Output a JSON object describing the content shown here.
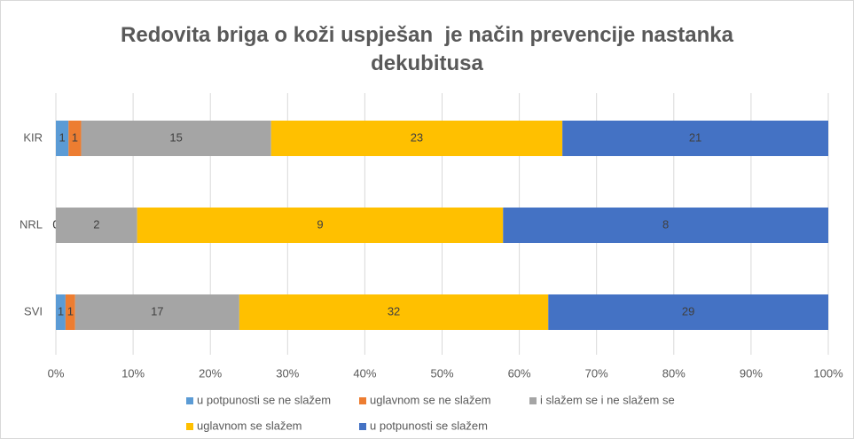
{
  "chart_data": {
    "type": "bar",
    "orientation": "horizontal",
    "stacking": "percent",
    "title": "Redovita briga o koži uspješan  je način prevencije nastanka dekubitusa",
    "categories": [
      "KIR",
      "NRL",
      "SVI"
    ],
    "series": [
      {
        "name": "u potpunosti se ne slažem",
        "color": "#5B9BD5",
        "values": [
          1,
          0,
          1
        ]
      },
      {
        "name": "uglavnom se ne slažem",
        "color": "#ED7D31",
        "values": [
          1,
          0,
          1
        ]
      },
      {
        "name": "i slažem se i ne slažem se",
        "color": "#A5A5A5",
        "values": [
          15,
          2,
          17
        ]
      },
      {
        "name": "uglavnom se slažem",
        "color": "#FFC000",
        "values": [
          23,
          9,
          32
        ]
      },
      {
        "name": "u potpunosti se slažem",
        "color": "#4472C4",
        "values": [
          21,
          8,
          29
        ]
      }
    ],
    "xlim": [
      0,
      100
    ],
    "xticks": [
      {
        "value": 0,
        "label": "0%"
      },
      {
        "value": 10,
        "label": "10%"
      },
      {
        "value": 20,
        "label": "20%"
      },
      {
        "value": 30,
        "label": "30%"
      },
      {
        "value": 40,
        "label": "40%"
      },
      {
        "value": 50,
        "label": "50%"
      },
      {
        "value": 60,
        "label": "60%"
      },
      {
        "value": 70,
        "label": "70%"
      },
      {
        "value": 80,
        "label": "80%"
      },
      {
        "value": 90,
        "label": "90%"
      },
      {
        "value": 100,
        "label": "100%"
      }
    ],
    "grid": true,
    "legend": "bottom"
  }
}
